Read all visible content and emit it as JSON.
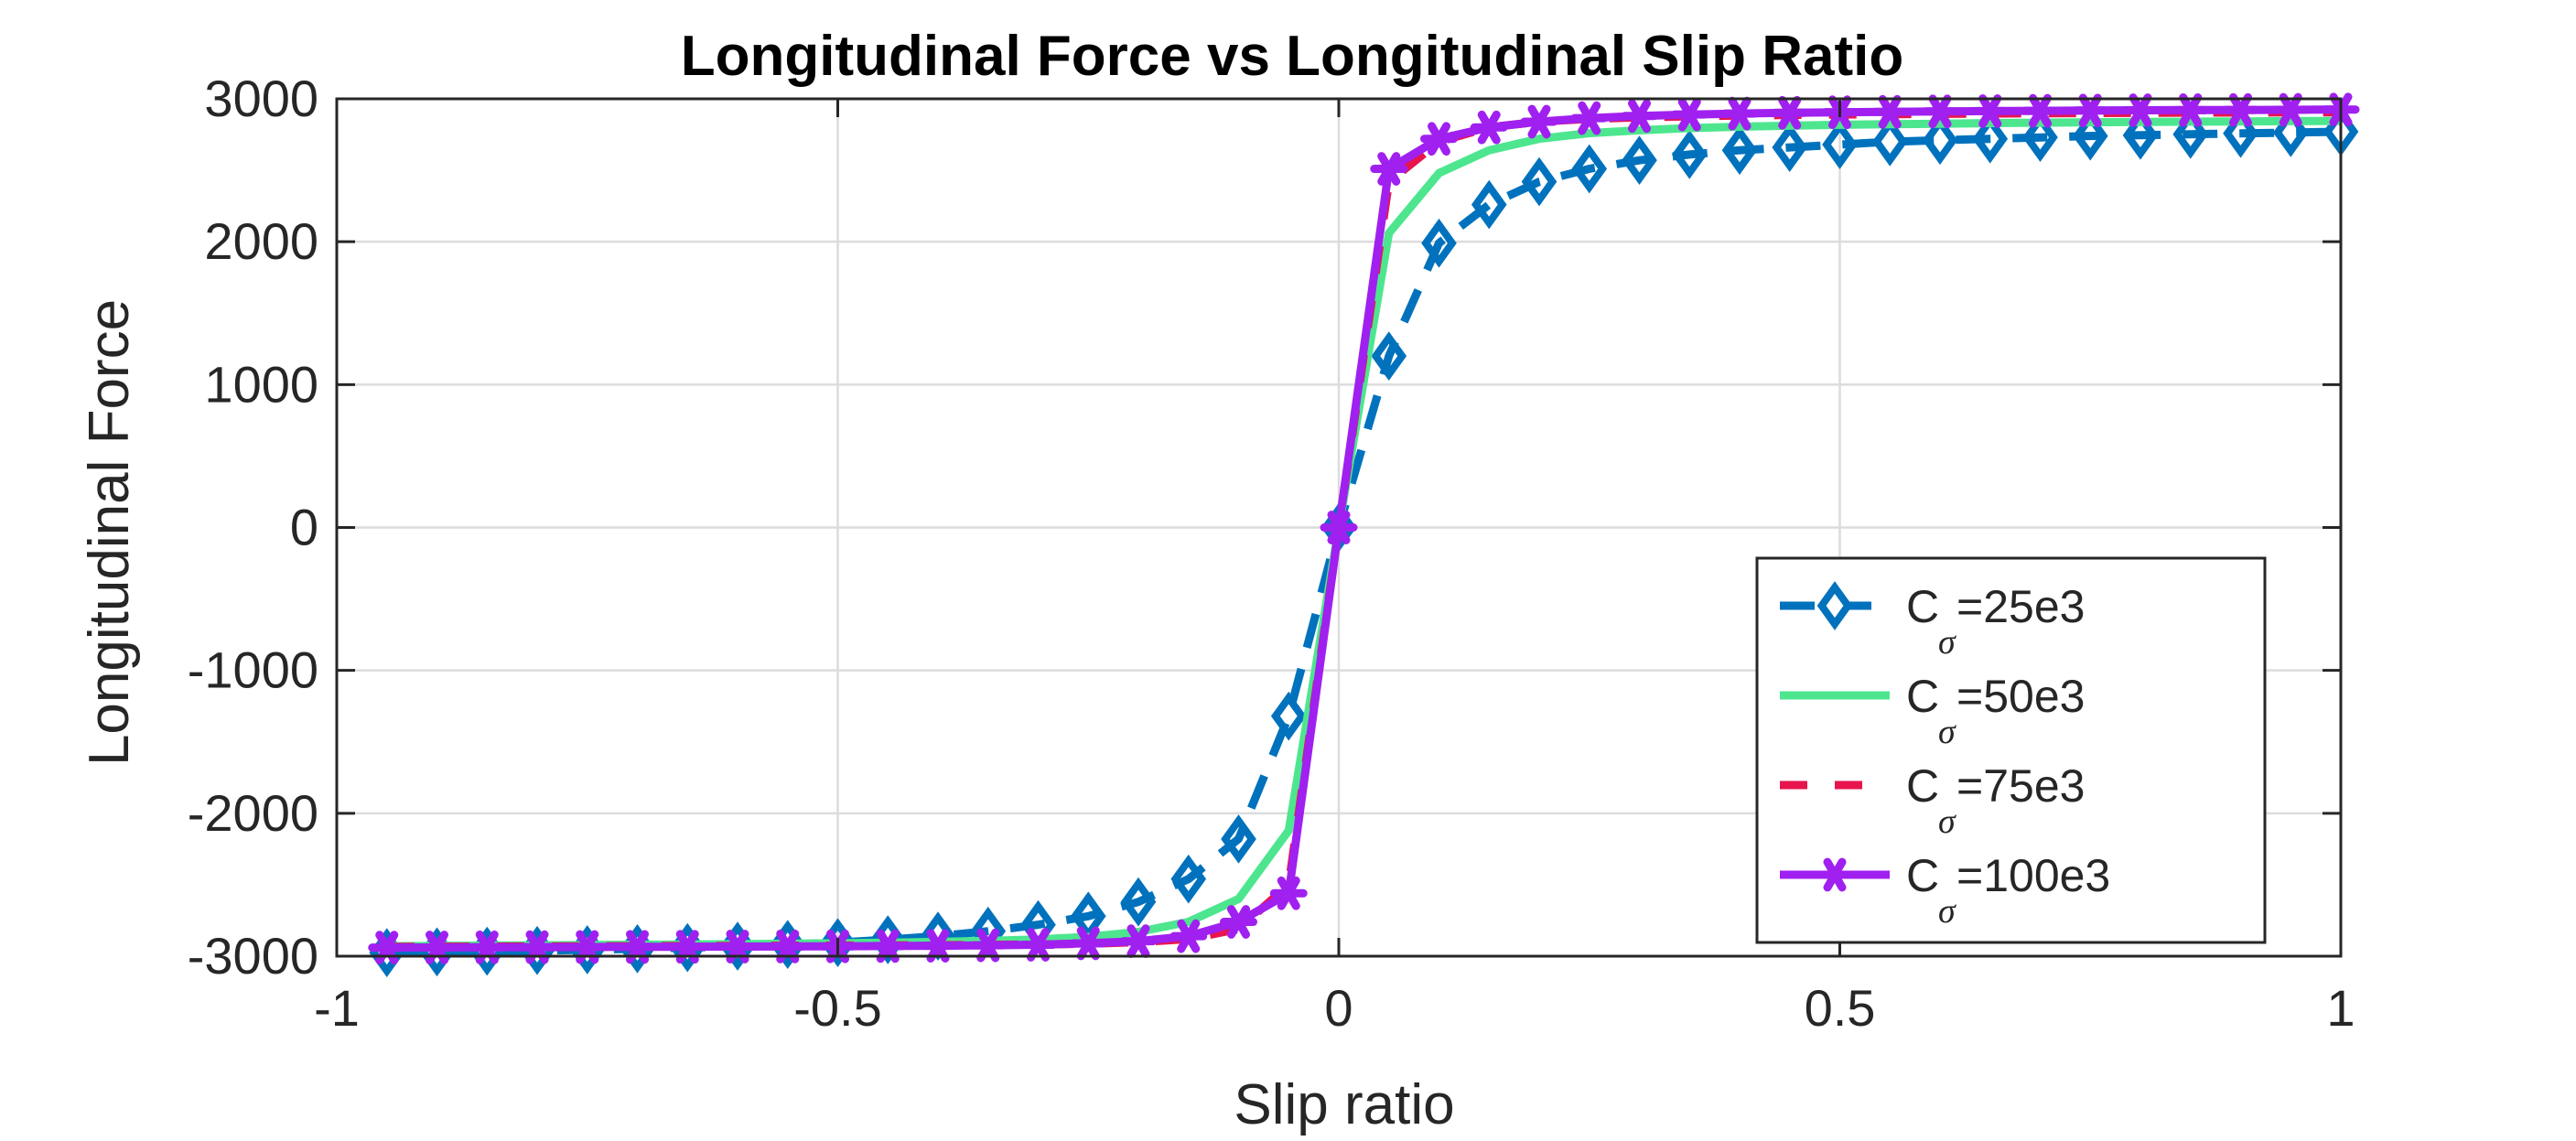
{
  "chart_data": {
    "type": "line",
    "title": "Longitudinal Force vs Longitudinal Slip Ratio",
    "xlabel": "Slip ratio",
    "ylabel": "Longitudinal Force",
    "xlim": [
      -1,
      1
    ],
    "ylim": [
      -3000,
      3000
    ],
    "xticks": [
      -1,
      -0.5,
      0,
      0.5,
      1
    ],
    "xtick_labels": [
      "-1",
      "-0.5",
      "0",
      "0.5",
      "1"
    ],
    "yticks": [
      -3000,
      -2000,
      -1000,
      0,
      1000,
      2000,
      3000
    ],
    "ytick_labels": [
      "-3000",
      "-2000",
      "-1000",
      "0",
      "1000",
      "2000",
      "3000"
    ],
    "grid": true,
    "legend_position": "lower-right",
    "x": [
      -0.95,
      -0.9,
      -0.85,
      -0.8,
      -0.75,
      -0.7,
      -0.65,
      -0.6,
      -0.55,
      -0.5,
      -0.45,
      -0.4,
      -0.35,
      -0.3,
      -0.25,
      -0.2,
      -0.15,
      -0.1,
      -0.05,
      0,
      0.05,
      0.1,
      0.15,
      0.2,
      0.25,
      0.3,
      0.35,
      0.4,
      0.45,
      0.5,
      0.55,
      0.6,
      0.65,
      0.7,
      0.75,
      0.8,
      0.85,
      0.9,
      0.95,
      1.0
    ],
    "series": [
      {
        "legend_main": "C",
        "legend_sub": "σ",
        "legend_tail": " =25e3",
        "color": "#0072BD",
        "dash": "38,24",
        "marker": "diamond",
        "values": [
          -2975,
          -2970,
          -2965,
          -2960,
          -2955,
          -2948,
          -2940,
          -2930,
          -2918,
          -2905,
          -2885,
          -2860,
          -2825,
          -2780,
          -2720,
          -2620,
          -2460,
          -2180,
          -1320,
          0,
          1200,
          1990,
          2260,
          2420,
          2510,
          2570,
          2610,
          2640,
          2660,
          2680,
          2700,
          2710,
          2720,
          2730,
          2740,
          2745,
          2752,
          2758,
          2764,
          2770
        ]
      },
      {
        "legend_main": "C",
        "legend_sub": "σ",
        "legend_tail": " =50e3",
        "color": "#4DE68F",
        "dash": "",
        "marker": "none",
        "values": [
          -2930,
          -2928,
          -2926,
          -2924,
          -2922,
          -2920,
          -2918,
          -2916,
          -2913,
          -2910,
          -2906,
          -2900,
          -2893,
          -2883,
          -2865,
          -2830,
          -2760,
          -2600,
          -2120,
          0,
          2060,
          2480,
          2640,
          2720,
          2760,
          2780,
          2795,
          2805,
          2812,
          2818,
          2822,
          2826,
          2830,
          2833,
          2836,
          2838,
          2840,
          2842,
          2844,
          2845
        ]
      },
      {
        "legend_main": "C",
        "legend_sub": "σ",
        "legend_tail": " =75e3",
        "color": "#E8144E",
        "dash": "30,30",
        "marker": "none",
        "values": [
          -2935,
          -2934,
          -2933,
          -2932,
          -2931,
          -2930,
          -2929,
          -2928,
          -2927,
          -2926,
          -2925,
          -2923,
          -2921,
          -2918,
          -2913,
          -2902,
          -2880,
          -2810,
          -2500,
          0,
          2420,
          2700,
          2800,
          2840,
          2860,
          2870,
          2878,
          2883,
          2887,
          2890,
          2893,
          2895,
          2897,
          2899,
          2900,
          2902,
          2903,
          2904,
          2905,
          2906
        ]
      },
      {
        "legend_main": "C",
        "legend_sub": "σ",
        "legend_tail": " =100e3",
        "color": "#A020F0",
        "dash": "",
        "marker": "asterisk",
        "values": [
          -2940,
          -2939,
          -2938,
          -2937,
          -2936,
          -2935,
          -2934,
          -2933,
          -2932,
          -2931,
          -2929,
          -2927,
          -2924,
          -2920,
          -2910,
          -2895,
          -2860,
          -2760,
          -2560,
          0,
          2510,
          2720,
          2800,
          2840,
          2865,
          2880,
          2890,
          2897,
          2902,
          2906,
          2909,
          2912,
          2914,
          2916,
          2918,
          2920,
          2921,
          2922,
          2923,
          2925
        ]
      }
    ]
  }
}
